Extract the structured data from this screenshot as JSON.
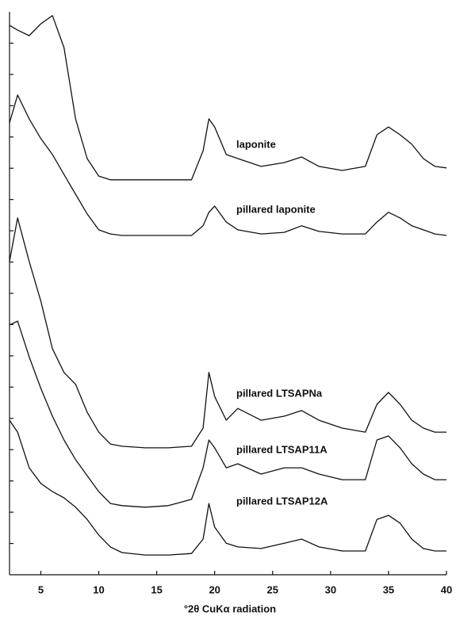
{
  "chart_data": {
    "type": "line",
    "x_label": "°2θ CuKα radiation",
    "xlim": [
      2.3,
      40
    ],
    "xticks": [
      5,
      10,
      15,
      20,
      25,
      30,
      35,
      40
    ],
    "ylim": [
      0,
      18
    ],
    "yticks": [
      1,
      2,
      3,
      4,
      5,
      6,
      7,
      8,
      9,
      10,
      11,
      12,
      13,
      14,
      15,
      16,
      17
    ],
    "x": [
      2.3,
      3,
      4,
      5,
      6,
      7,
      8,
      9,
      10,
      11,
      12,
      14,
      16,
      18,
      19,
      19.5,
      20,
      21,
      22,
      24,
      26,
      27.5,
      29,
      31,
      33,
      34,
      35,
      36,
      37,
      38,
      39,
      40
    ],
    "series": [
      {
        "name": "laponite",
        "color": "#111111",
        "values": [
          17.57,
          17.42,
          17.24,
          17.62,
          17.88,
          16.86,
          14.58,
          13.31,
          12.75,
          12.63,
          12.63,
          12.63,
          12.63,
          12.63,
          13.56,
          14.58,
          14.32,
          13.44,
          13.31,
          13.06,
          13.18,
          13.36,
          13.06,
          12.93,
          13.06,
          14.07,
          14.32,
          14.07,
          13.77,
          13.31,
          13.06,
          13.01
        ]
      },
      {
        "name": "pillared laponite",
        "color": "#111111",
        "values": [
          14.45,
          15.34,
          14.58,
          13.95,
          13.44,
          12.8,
          12.17,
          11.54,
          11.03,
          10.9,
          10.85,
          10.85,
          10.85,
          10.85,
          11.16,
          11.59,
          11.79,
          11.28,
          11.03,
          10.9,
          10.95,
          11.16,
          10.98,
          10.9,
          10.9,
          11.28,
          11.59,
          11.41,
          11.16,
          11.03,
          10.9,
          10.85
        ]
      },
      {
        "name": "pillared LTSAPNa",
        "color": "#111111",
        "values": [
          10.02,
          11.41,
          10.02,
          8.75,
          7.23,
          6.47,
          6.09,
          5.2,
          4.56,
          4.18,
          4.11,
          4.06,
          4.06,
          4.11,
          4.69,
          6.47,
          5.7,
          4.94,
          5.32,
          4.94,
          5.07,
          5.25,
          4.94,
          4.69,
          4.56,
          5.45,
          5.83,
          5.45,
          4.94,
          4.69,
          4.56,
          4.56
        ]
      },
      {
        "name": "pillared LTSAP11A",
        "color": "#111111",
        "values": [
          7.99,
          8.11,
          6.97,
          5.96,
          5.07,
          4.31,
          3.68,
          3.17,
          2.66,
          2.28,
          2.21,
          2.16,
          2.21,
          2.41,
          3.42,
          4.31,
          4.06,
          3.42,
          3.55,
          3.22,
          3.42,
          3.42,
          3.22,
          3.04,
          3.04,
          4.31,
          4.44,
          4.06,
          3.55,
          3.22,
          3.04,
          3.04
        ]
      },
      {
        "name": "pillared LTSAP12A",
        "color": "#111111",
        "values": [
          4.94,
          4.56,
          3.42,
          2.92,
          2.66,
          2.46,
          2.16,
          1.77,
          1.27,
          0.89,
          0.71,
          0.63,
          0.63,
          0.68,
          1.14,
          2.28,
          1.52,
          1.01,
          0.89,
          0.84,
          1.01,
          1.14,
          0.89,
          0.76,
          0.76,
          1.77,
          1.9,
          1.65,
          1.14,
          0.84,
          0.76,
          0.76
        ]
      }
    ]
  }
}
